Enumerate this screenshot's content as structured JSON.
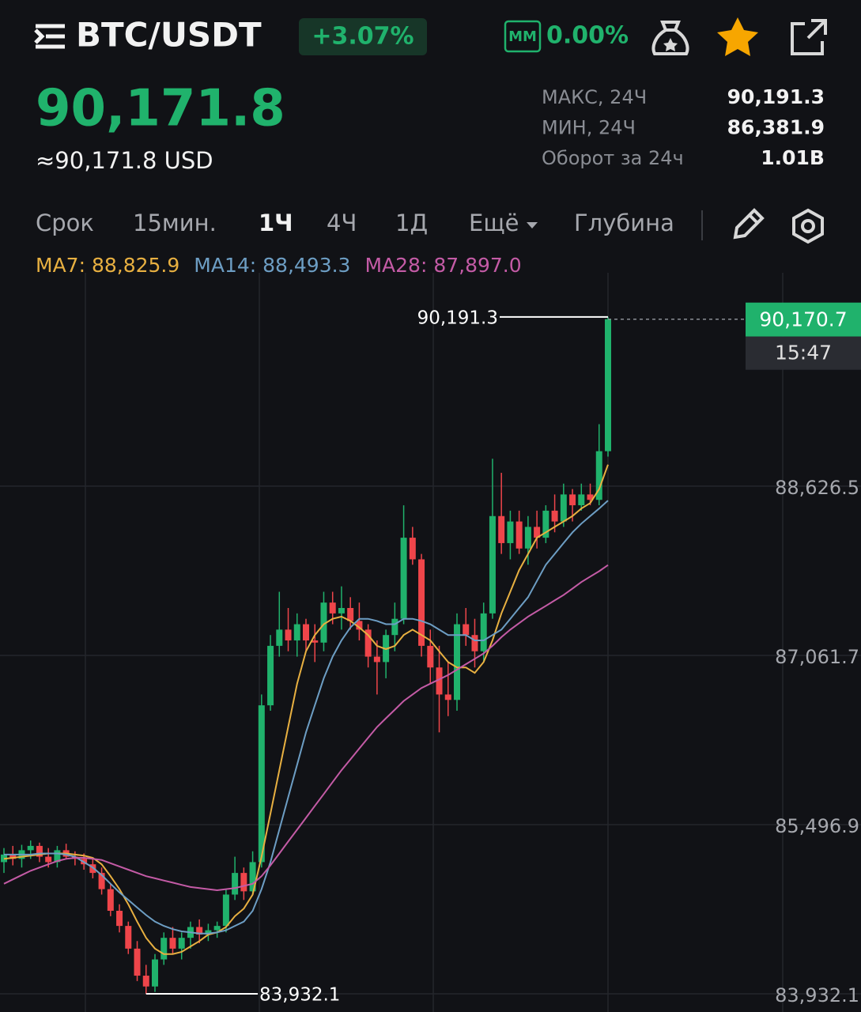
{
  "header": {
    "pair": "BTC/USDT",
    "change": "+3.07%",
    "mm_badge": "MM",
    "mm_value": "0.00%",
    "price": "90,171.8",
    "price_usd": "≈90,171.8 USD",
    "stats": [
      {
        "label": "МАКС, 24Ч",
        "value": "90,191.3"
      },
      {
        "label": "МИН, 24Ч",
        "value": "86,381.9"
      },
      {
        "label": "Оборот за 24ч",
        "value": "1.01B"
      }
    ]
  },
  "tabs": [
    "Срок",
    "15мин.",
    "1Ч",
    "4Ч",
    "1Д",
    "Ещё",
    "Глубина"
  ],
  "chart_data": {
    "type": "candlestick",
    "up_color": "#20b26c",
    "down_color": "#ef454a",
    "candles": [
      [
        85150,
        85280,
        85050,
        85220
      ],
      [
        85220,
        85300,
        85120,
        85180
      ],
      [
        85180,
        85310,
        85100,
        85260
      ],
      [
        85260,
        85350,
        85180,
        85300
      ],
      [
        85300,
        85330,
        85150,
        85200
      ],
      [
        85200,
        85280,
        85100,
        85150
      ],
      [
        85150,
        85300,
        85100,
        85260
      ],
      [
        85260,
        85320,
        85180,
        85200
      ],
      [
        85200,
        85250,
        85120,
        85180
      ],
      [
        85180,
        85230,
        85080,
        85130
      ],
      [
        85130,
        85180,
        85000,
        85050
      ],
      [
        85050,
        85100,
        84850,
        84900
      ],
      [
        84900,
        84950,
        84650,
        84700
      ],
      [
        84700,
        84760,
        84500,
        84560
      ],
      [
        84560,
        84600,
        84300,
        84350
      ],
      [
        84350,
        84420,
        84050,
        84100
      ],
      [
        84100,
        84200,
        83932.1,
        84000
      ],
      [
        84000,
        84300,
        83950,
        84250
      ],
      [
        84250,
        84500,
        84200,
        84450
      ],
      [
        84450,
        84550,
        84300,
        84350
      ],
      [
        84350,
        84500,
        84250,
        84450
      ],
      [
        84450,
        84600,
        84350,
        84550
      ],
      [
        84550,
        84620,
        84400,
        84480
      ],
      [
        84480,
        84580,
        84420,
        84520
      ],
      [
        84520,
        84600,
        84450,
        84560
      ],
      [
        84560,
        84900,
        84500,
        84850
      ],
      [
        84850,
        85200,
        84800,
        85050
      ],
      [
        85050,
        85100,
        84800,
        84880
      ],
      [
        84880,
        85250,
        84850,
        85150
      ],
      [
        85150,
        86700,
        85100,
        86600
      ],
      [
        86600,
        87250,
        86550,
        87150
      ],
      [
        87150,
        87650,
        87050,
        87300
      ],
      [
        87300,
        87500,
        87100,
        87200
      ],
      [
        87200,
        87450,
        87050,
        87350
      ],
      [
        87350,
        87400,
        87100,
        87200
      ],
      [
        87200,
        87350,
        87000,
        87180
      ],
      [
        87180,
        87650,
        87100,
        87550
      ],
      [
        87550,
        87650,
        87350,
        87450
      ],
      [
        87450,
        87700,
        87300,
        87500
      ],
      [
        87500,
        87600,
        87300,
        87380
      ],
      [
        87380,
        87550,
        87200,
        87300
      ],
      [
        87300,
        87350,
        86950,
        87050
      ],
      [
        87050,
        87200,
        86700,
        87000
      ],
      [
        87000,
        87300,
        86850,
        87250
      ],
      [
        87250,
        87550,
        87100,
        87400
      ],
      [
        87400,
        88450,
        87350,
        88150
      ],
      [
        88150,
        88250,
        87900,
        87950
      ],
      [
        87950,
        88000,
        87050,
        87150
      ],
      [
        87150,
        87300,
        86800,
        86950
      ],
      [
        86950,
        87150,
        86350,
        86700
      ],
      [
        86700,
        87000,
        86500,
        86650
      ],
      [
        86650,
        87450,
        86550,
        87350
      ],
      [
        87350,
        87500,
        87150,
        87250
      ],
      [
        87250,
        87400,
        86950,
        87100
      ],
      [
        87100,
        87550,
        87000,
        87450
      ],
      [
        87450,
        88880,
        87400,
        88350
      ],
      [
        88350,
        88750,
        88000,
        88100
      ],
      [
        88100,
        88400,
        87950,
        88300
      ],
      [
        88300,
        88400,
        88000,
        88050
      ],
      [
        88050,
        88350,
        87900,
        88250
      ],
      [
        88250,
        88400,
        88050,
        88150
      ],
      [
        88150,
        88450,
        88100,
        88400
      ],
      [
        88400,
        88550,
        88200,
        88300
      ],
      [
        88300,
        88650,
        88250,
        88550
      ],
      [
        88550,
        88600,
        88300,
        88450
      ],
      [
        88450,
        88650,
        88400,
        88550
      ],
      [
        88550,
        88650,
        88450,
        88500
      ],
      [
        88500,
        89200,
        88450,
        88950
      ],
      [
        88950,
        90191.3,
        88900,
        90170.7
      ]
    ],
    "series": [
      {
        "name": "MA7",
        "legend": "MA7: 88,825.9",
        "color": "#e8b041",
        "values": [
          85180,
          85190,
          85200,
          85210,
          85220,
          85230,
          85230,
          85230,
          85220,
          85210,
          85190,
          85130,
          85020,
          84900,
          84760,
          84600,
          84450,
          84350,
          84300,
          84300,
          84320,
          84370,
          84420,
          84480,
          84500,
          84550,
          84650,
          84720,
          84850,
          85200,
          85600,
          86000,
          86400,
          86800,
          87100,
          87250,
          87350,
          87400,
          87420,
          87380,
          87320,
          87250,
          87150,
          87120,
          87150,
          87250,
          87300,
          87250,
          87200,
          87100,
          87000,
          86950,
          86950,
          86900,
          87000,
          87200,
          87450,
          87650,
          87850,
          88000,
          88150,
          88200,
          88250,
          88300,
          88350,
          88420,
          88470,
          88600,
          88825.9
        ]
      },
      {
        "name": "MA14",
        "legend": "MA14: 88,493.3",
        "color": "#6d9ec4",
        "values": [
          85220,
          85220,
          85220,
          85220,
          85230,
          85230,
          85230,
          85220,
          85200,
          85150,
          85100,
          85030,
          84950,
          84870,
          84800,
          84730,
          84660,
          84600,
          84560,
          84530,
          84510,
          84500,
          84490,
          84490,
          84500,
          84520,
          84560,
          84600,
          84700,
          84900,
          85150,
          85450,
          85750,
          86050,
          86350,
          86600,
          86850,
          87050,
          87200,
          87320,
          87400,
          87400,
          87380,
          87350,
          87350,
          87400,
          87400,
          87380,
          87350,
          87300,
          87250,
          87250,
          87250,
          87200,
          87200,
          87250,
          87300,
          87400,
          87500,
          87600,
          87750,
          87900,
          88000,
          88100,
          88200,
          88280,
          88350,
          88420,
          88493.3
        ]
      },
      {
        "name": "MA28",
        "legend": "MA28: 87,897.0",
        "color": "#c45ba6",
        "values": [
          84950,
          84990,
          85030,
          85070,
          85100,
          85130,
          85160,
          85180,
          85190,
          85190,
          85180,
          85170,
          85140,
          85110,
          85080,
          85050,
          85020,
          85000,
          84980,
          84960,
          84940,
          84920,
          84910,
          84900,
          84890,
          84900,
          84910,
          84930,
          84950,
          85020,
          85120,
          85230,
          85340,
          85450,
          85560,
          85670,
          85780,
          85890,
          86000,
          86100,
          86200,
          86300,
          86400,
          86480,
          86560,
          86640,
          86700,
          86760,
          86800,
          86840,
          86880,
          86930,
          86980,
          87030,
          87080,
          87150,
          87230,
          87300,
          87360,
          87420,
          87470,
          87520,
          87570,
          87620,
          87680,
          87740,
          87790,
          87840,
          87897.0
        ]
      }
    ],
    "ylim": [
      83764,
      90600
    ],
    "yticks": [
      {
        "value": 83932.1,
        "label": "83,932.1"
      },
      {
        "value": 85496.9,
        "label": "85,496.9"
      },
      {
        "value": 87061.7,
        "label": "87,061.7"
      },
      {
        "value": 88626.5,
        "label": "88,626.5"
      }
    ],
    "high": {
      "value": 90191.3,
      "label": "90,191.3"
    },
    "low": {
      "value": 83932.1,
      "label": "83,932.1"
    },
    "last_price": {
      "value": 90170.7,
      "label": "90,170.7"
    },
    "countdown": "15:47"
  }
}
